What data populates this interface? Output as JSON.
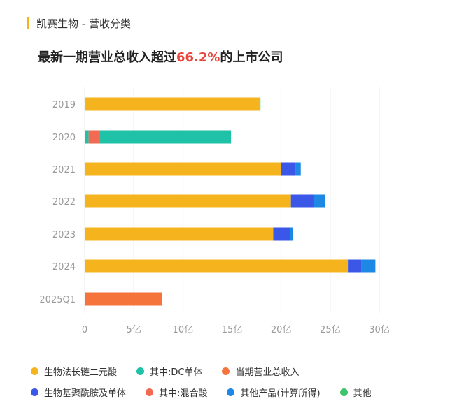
{
  "header": {
    "title": "凯赛生物 - 营收分类",
    "subtitle_prefix": "最新一期营业总收入超过",
    "subtitle_highlight": "66.2%",
    "subtitle_suffix": "的上市公司"
  },
  "colors": {
    "accent": "#f5b41e",
    "highlight": "#e8453c"
  },
  "chart_data": {
    "type": "bar",
    "orientation": "horizontal",
    "stacked": true,
    "categories": [
      "2019",
      "2020",
      "2021",
      "2022",
      "2023",
      "2024",
      "2025Q1"
    ],
    "x_ticks": [
      0,
      5,
      10,
      15,
      20,
      25,
      30
    ],
    "x_tick_labels": [
      "0",
      "5亿",
      "10亿",
      "15亿",
      "20亿",
      "25亿",
      "30亿"
    ],
    "xlim": [
      0,
      30
    ],
    "unit": "亿",
    "series": [
      {
        "name": "生物法长链二元酸",
        "color": "#f5b41e",
        "values": [
          17.8,
          0,
          20.0,
          21.0,
          19.2,
          26.8,
          0
        ]
      },
      {
        "name": "其中:DC单体",
        "color": "#1fc2a7",
        "values": [
          0,
          13.4,
          0,
          0,
          0,
          0,
          0
        ]
      },
      {
        "name": "当期营业总收入",
        "color": "#f4743b",
        "values": [
          0,
          0,
          0,
          0,
          0,
          0,
          7.9
        ]
      },
      {
        "name": "生物基聚酰胺及单体",
        "color": "#3b57e8",
        "values": [
          0,
          0,
          1.5,
          2.3,
          1.7,
          1.4,
          0
        ]
      },
      {
        "name": "其中:混合酸",
        "color": "#f36a52",
        "values": [
          0,
          1.1,
          0,
          0,
          0,
          0,
          0
        ]
      },
      {
        "name": "其他产品(计算所得)",
        "color": "#1e88e5",
        "values": [
          0,
          0,
          0.5,
          1.2,
          0.3,
          1.4,
          0
        ]
      },
      {
        "name": "其他",
        "color": "#3ec46d",
        "values": [
          0.1,
          0,
          0,
          0,
          0,
          0,
          0
        ]
      }
    ],
    "stack_order": [
      [
        "生物法长链二元酸",
        "生物基聚酰胺及单体",
        "其他产品(计算所得)",
        "其他"
      ],
      [
        "其中:DC单体",
        "其中:混合酸",
        "其中:DC单体"
      ],
      [
        "生物法长链二元酸",
        "生物基聚酰胺及单体",
        "其他产品(计算所得)"
      ],
      [
        "生物法长链二元酸",
        "生物基聚酰胺及单体",
        "其他产品(计算所得)"
      ],
      [
        "生物法长链二元酸",
        "生物基聚酰胺及单体",
        "其他产品(计算所得)"
      ],
      [
        "生物法长链二元酸",
        "生物基聚酰胺及单体",
        "其他产品(计算所得)"
      ],
      [
        "当期营业总收入"
      ]
    ],
    "segments_2020": [
      {
        "name": "其中:DC单体",
        "value": 0.4
      },
      {
        "name": "其中:混合酸",
        "value": 1.1
      },
      {
        "name": "其中:DC单体",
        "value": 13.4
      }
    ],
    "legend_rows": [
      [
        "生物法长链二元酸",
        "其中:DC单体",
        "当期营业总收入"
      ],
      [
        "生物基聚酰胺及单体",
        "其中:混合酸",
        "其他产品(计算所得)",
        "其他"
      ]
    ],
    "grid": true,
    "legend_position": "bottom"
  }
}
